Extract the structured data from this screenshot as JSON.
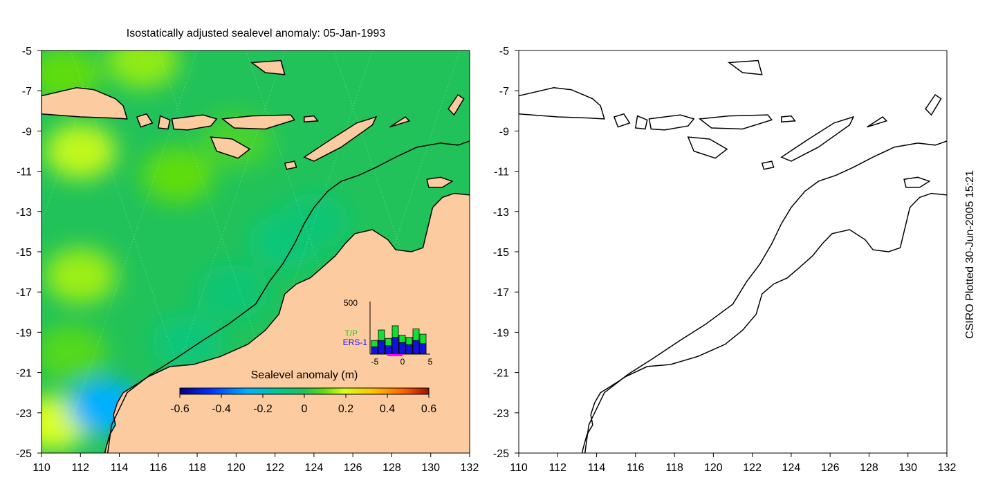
{
  "title": "Isostatically adjusted sealevel anomaly: 05-Jan-1993",
  "credit": "CSIRO Plotted 30-Jun-2005 15:21",
  "colors": {
    "land": "#fccba0",
    "coast": "#000000",
    "ocean_base": "#22c25a"
  },
  "chart_data": [
    {
      "type": "heatmap",
      "name": "sea level anomaly map",
      "x": [
        110,
        112,
        114,
        116,
        118,
        120,
        122,
        124,
        126,
        128,
        130,
        132
      ],
      "y": [
        -5,
        -7,
        -9,
        -11,
        -13,
        -15,
        -17,
        -19,
        -21,
        -23,
        -25
      ],
      "xlim": [
        110,
        132
      ],
      "ylim": [
        -25,
        -5
      ],
      "anomaly_blobs": [
        {
          "lon": 112.0,
          "lat": -10.0,
          "value": 0.18
        },
        {
          "lon": 112.0,
          "lat": -16.2,
          "value": 0.15
        },
        {
          "lon": 110.6,
          "lat": -23.5,
          "value": 0.2
        },
        {
          "lon": 113.2,
          "lat": -22.7,
          "value": -0.28
        },
        {
          "lon": 115.2,
          "lat": -5.5,
          "value": 0.14
        },
        {
          "lon": 111.2,
          "lat": -6.2,
          "value": 0.1
        },
        {
          "lon": 117.0,
          "lat": -11.2,
          "value": 0.1
        },
        {
          "lon": 119.8,
          "lat": -17.0,
          "value": -0.06
        },
        {
          "lon": 117.5,
          "lat": -19.5,
          "value": -0.07
        },
        {
          "lon": 122.5,
          "lat": -14.5,
          "value": -0.07
        },
        {
          "lon": 124.0,
          "lat": -13.5,
          "value": -0.06
        },
        {
          "lon": 111.5,
          "lat": -20.0,
          "value": 0.08
        },
        {
          "lon": 120.0,
          "lat": -9.5,
          "value": 0.06
        }
      ],
      "colorbar": {
        "label": "Sealevel anomaly (m)",
        "ticks": [
          "-0.6",
          "-0.4",
          "-0.2",
          "0",
          "0.2",
          "0.4",
          "0.6"
        ],
        "range": [
          -0.6,
          0.6
        ]
      },
      "inset": {
        "type": "bar",
        "ymax_label": "500",
        "x_ticks": [
          "-5",
          "0",
          "5"
        ],
        "series": [
          {
            "name": "T/P",
            "values": [
              130,
              230,
              150,
              270,
              180,
              160,
              240,
              190
            ]
          },
          {
            "name": "ERS-1",
            "values": [
              70,
              130,
              80,
              160,
              110,
              90,
              130,
              100
            ]
          }
        ]
      }
    },
    {
      "type": "map",
      "name": "coastline contours",
      "x": [
        110,
        112,
        114,
        116,
        118,
        120,
        122,
        124,
        126,
        128,
        130,
        132
      ],
      "y": [
        -5,
        -7,
        -9,
        -11,
        -13,
        -15,
        -17,
        -19,
        -21,
        -23,
        -25
      ],
      "xlim": [
        110,
        132
      ],
      "ylim": [
        -25,
        -5
      ]
    }
  ],
  "labels": {
    "x_ticks": [
      "110",
      "112",
      "114",
      "116",
      "118",
      "120",
      "122",
      "124",
      "126",
      "128",
      "130",
      "132"
    ],
    "y_ticks": [
      "-5",
      "-7",
      "-9",
      "-11",
      "-13",
      "-15",
      "-17",
      "-19",
      "-21",
      "-23",
      "-25"
    ]
  }
}
